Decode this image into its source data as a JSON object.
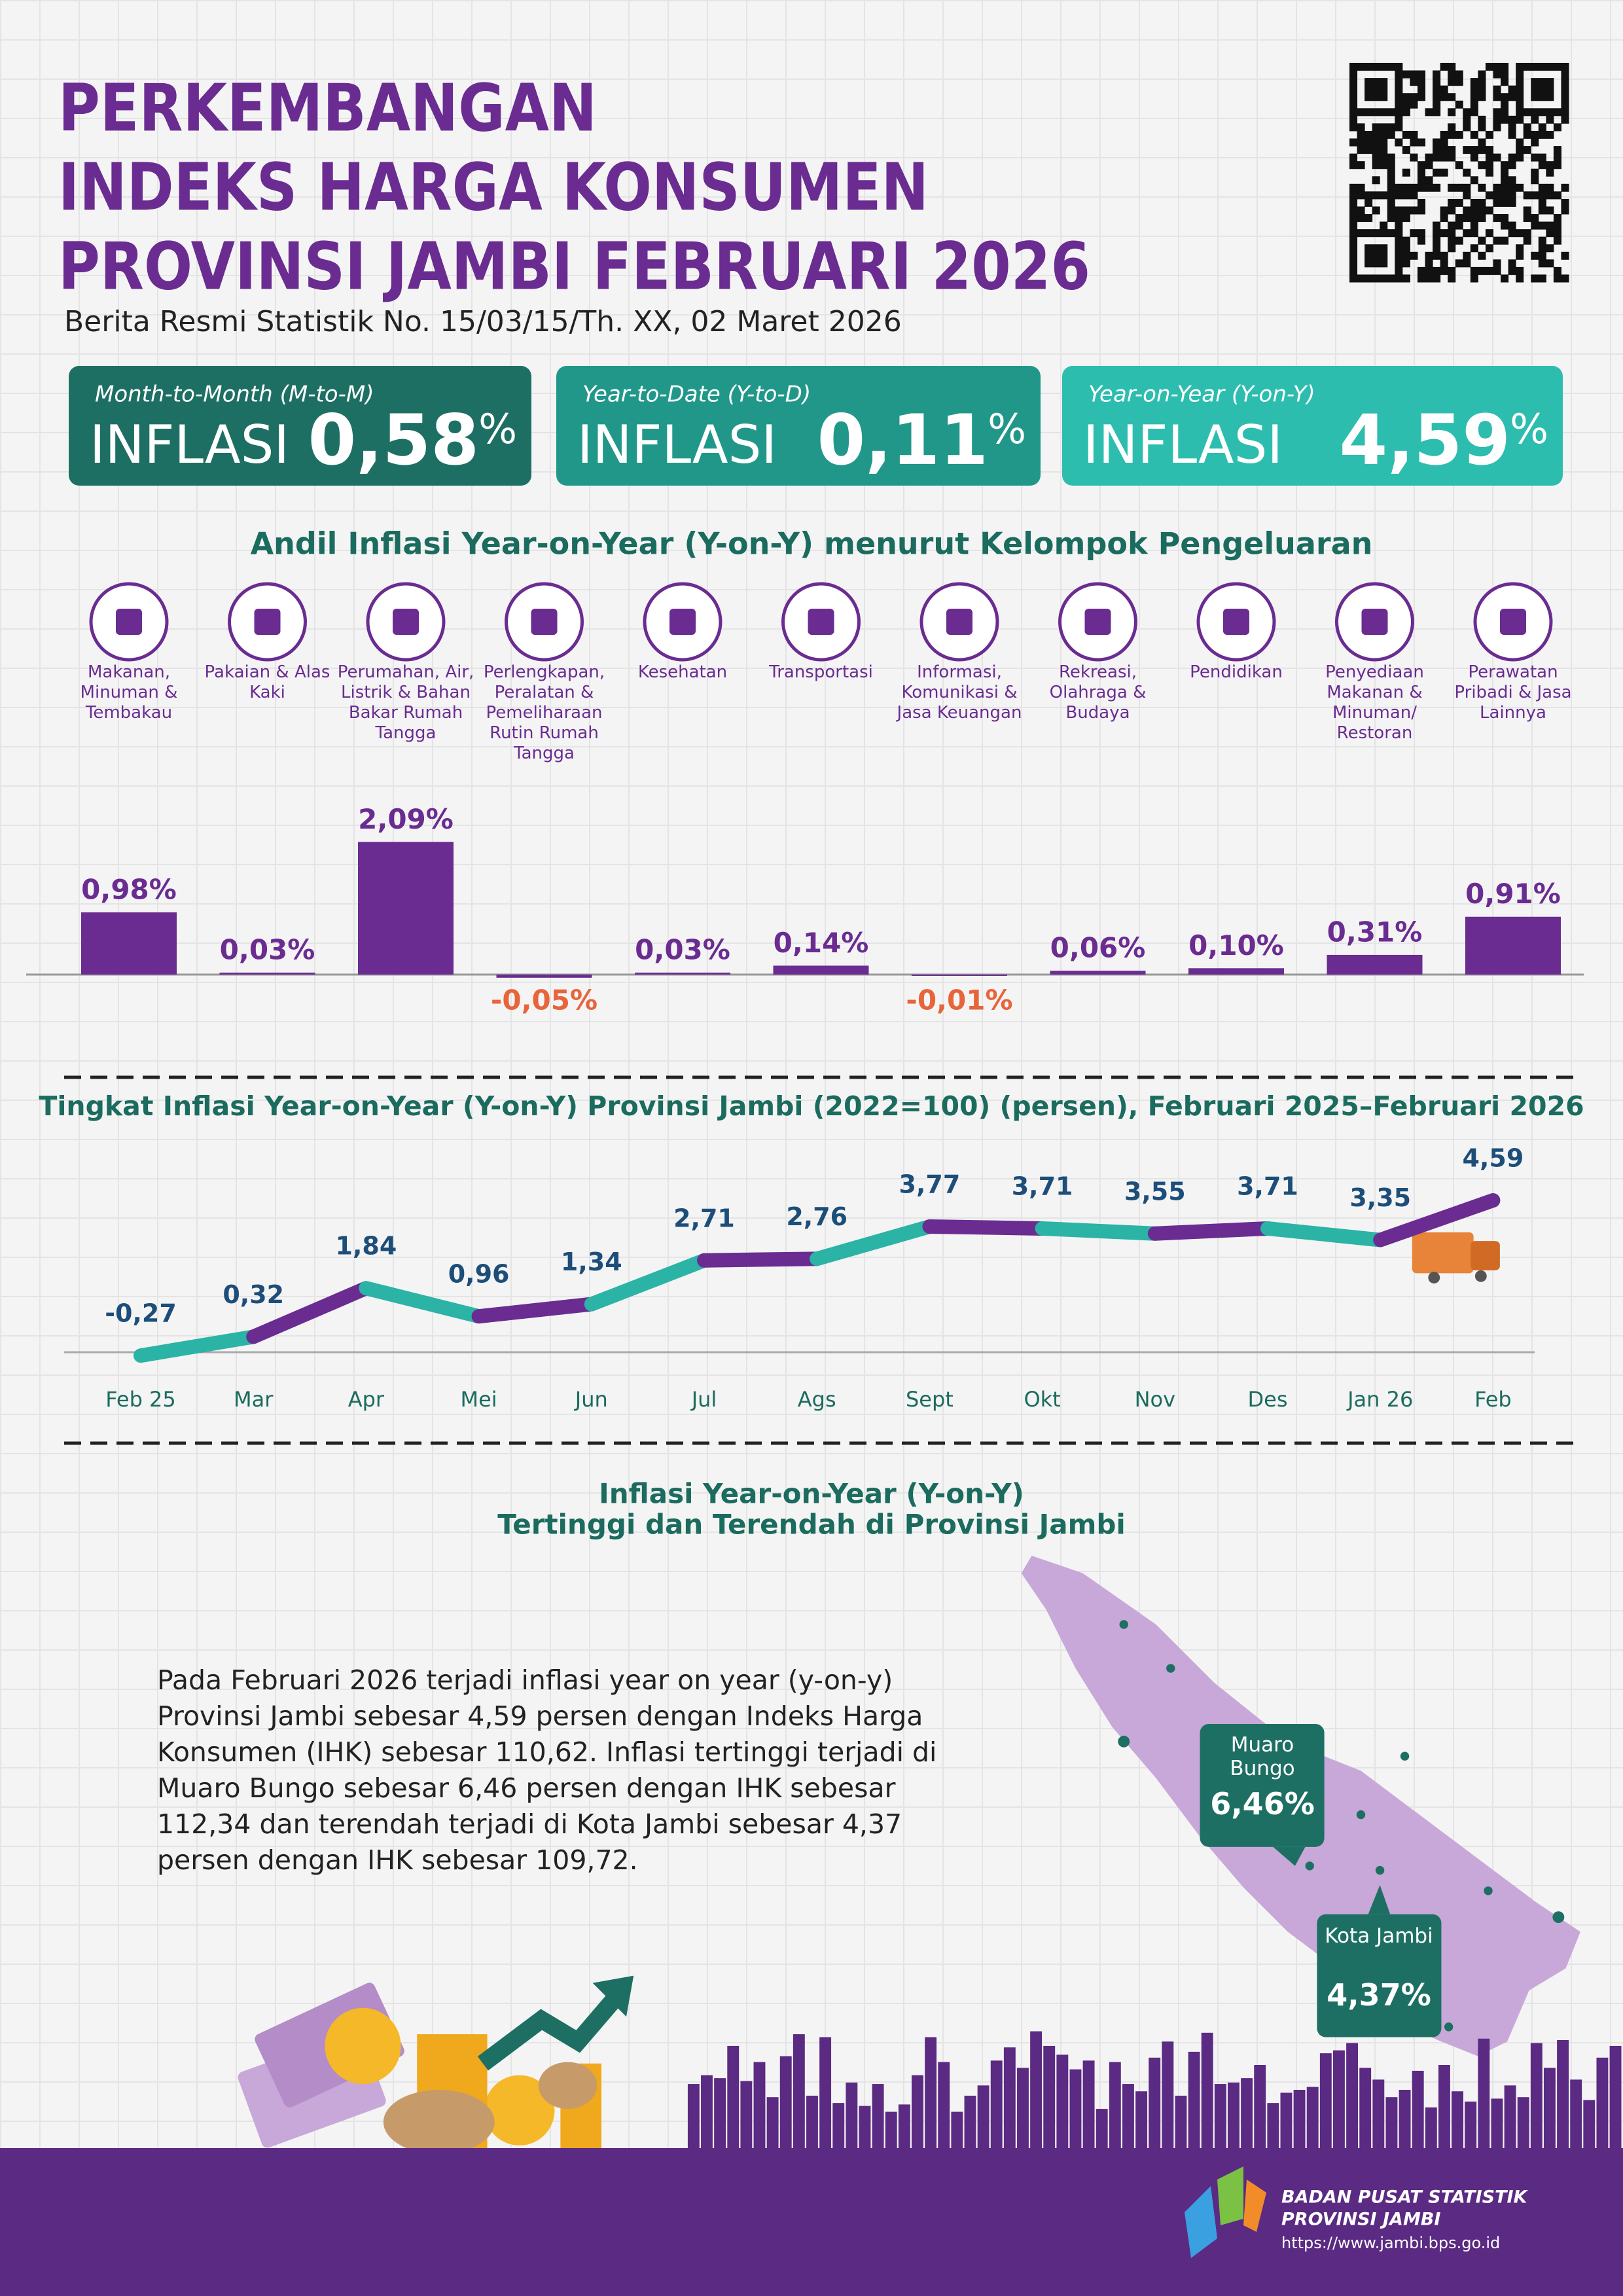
{
  "header": {
    "title_lines": [
      "PERKEMBANGAN",
      "INDEKS HARGA KONSUMEN",
      "PROVINSI JAMBI FEBRUARI 2026"
    ],
    "subtitle": "Berita Resmi Statistik No. 15/03/15/Th. XX, 02 Maret 2026"
  },
  "cards": [
    {
      "label": "Month-to-Month (M-to-M)",
      "heading": "INFLASI",
      "value": "0,58",
      "unit": "%",
      "color": "#1e6f63"
    },
    {
      "label": "Year-to-Date (Y-to-D)",
      "heading": "INFLASI",
      "value": "0,11",
      "unit": "%",
      "color": "#21978a"
    },
    {
      "label": "Year-on-Year (Y-on-Y)",
      "heading": "INFLASI",
      "value": "4,59",
      "unit": "%",
      "color": "#2dbdaf"
    }
  ],
  "chart_data": [
    {
      "type": "bar",
      "title": "Andil Inflasi Year-on-Year (Y-on-Y) menurut Kelompok Pengeluaran",
      "categories": [
        "Makanan, Minuman & Tembakau",
        "Pakaian & Alas Kaki",
        "Perumahan, Air, Listrik & Bahan Bakar Rumah Tangga",
        "Perlengkapan, Peralatan & Pemeliharaan Rutin Rumah Tangga",
        "Kesehatan",
        "Transportasi",
        "Informasi, Komunikasi & Jasa Keuangan",
        "Rekreasi, Olahraga & Budaya",
        "Pendidikan",
        "Penyediaan Makanan & Minuman/ Restoran",
        "Perawatan Pribadi & Jasa Lainnya"
      ],
      "values": [
        0.98,
        0.03,
        2.09,
        -0.05,
        0.03,
        0.14,
        -0.01,
        0.06,
        0.1,
        0.31,
        0.91
      ],
      "value_labels": [
        "0,98%",
        "0,03%",
        "2,09%",
        "-0,05%",
        "0,03%",
        "0,14%",
        "-0,01%",
        "0,06%",
        "0,10%",
        "0,31%",
        "0,91%"
      ],
      "color": "#6a2c91",
      "negative_color": "#e8643a"
    },
    {
      "type": "line",
      "title": "Tingkat Inflasi Year-on-Year (Y-on-Y) Provinsi Jambi (2022=100) (persen), Februari 2025–Februari 2026",
      "categories": [
        "Feb 25",
        "Mar",
        "Apr",
        "Mei",
        "Jun",
        "Jul",
        "Ags",
        "Sept",
        "Okt",
        "Nov",
        "Des",
        "Jan 26",
        "Feb"
      ],
      "values": [
        -0.27,
        0.32,
        1.84,
        0.96,
        1.34,
        2.71,
        2.76,
        3.77,
        3.71,
        3.55,
        3.71,
        3.35,
        4.59
      ],
      "value_labels": [
        "-0,27",
        "0,32",
        "1,84",
        "0,96",
        "1,34",
        "2,71",
        "2,76",
        "3,77",
        "3,71",
        "3,55",
        "3,71",
        "3,35",
        "4,59"
      ],
      "colors": [
        "#2bb3a5",
        "#6a2c91"
      ],
      "label_color": "#1d4e7a"
    }
  ],
  "map": {
    "title_lines": [
      "Inflasi Year-on-Year (Y-on-Y)",
      "Tertinggi dan Terendah di Provinsi Jambi"
    ],
    "paragraph": "Pada Februari 2026 terjadi inflasi year on year (y-on-y) Provinsi Jambi sebesar 4,59 persen dengan Indeks Harga Konsumen (IHK) sebesar 110,62. Inflasi tertinggi terjadi di Muaro Bungo sebesar 6,46 persen dengan IHK sebesar 112,34 dan terendah terjadi di Kota Jambi sebesar 4,37 persen dengan IHK sebesar 109,72.",
    "callouts": [
      {
        "name": "Muaro Bungo",
        "value": "6,46%"
      },
      {
        "name": "Kota Jambi",
        "value": "4,37%"
      }
    ]
  },
  "footer": {
    "org_lines": [
      "BADAN PUSAT STATISTIK",
      "PROVINSI JAMBI"
    ],
    "url": "https://www.jambi.bps.go.id"
  }
}
